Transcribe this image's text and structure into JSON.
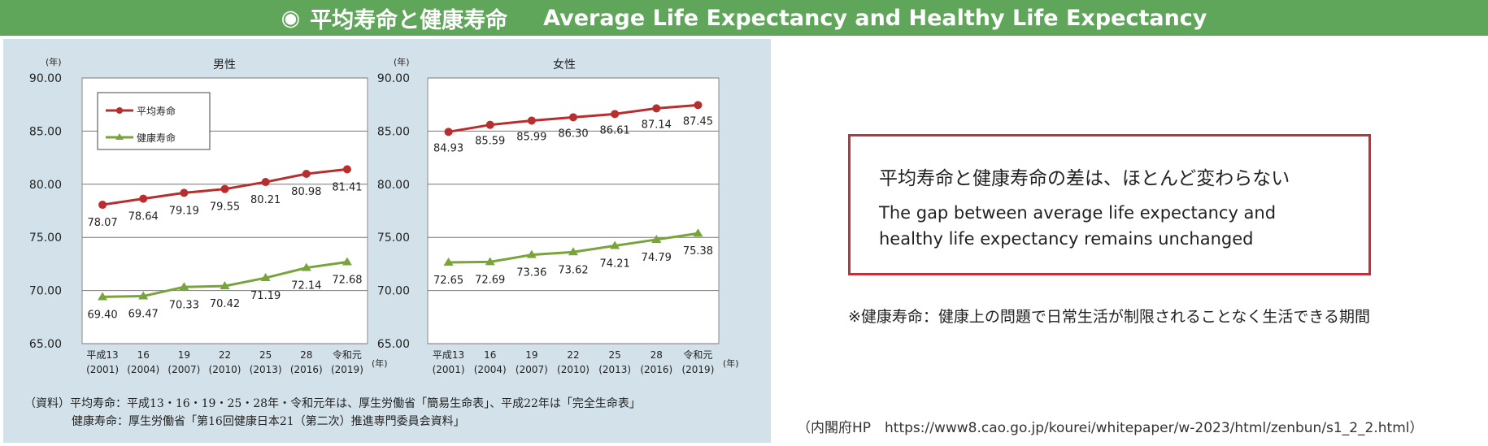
{
  "banner": {
    "mark": "◉",
    "title_jp": "平均寿命と健康寿命",
    "title_en": "Average Life Expectancy and Healthy Life Expectancy"
  },
  "chart_data": [
    {
      "type": "line",
      "title": "男性",
      "ylabel": "(年)",
      "xlabel": "(年)",
      "ylim": [
        65,
        90
      ],
      "yticks": [
        "65.00",
        "70.00",
        "75.00",
        "80.00",
        "85.00",
        "90.00"
      ],
      "categories": [
        "平成13",
        "16",
        "19",
        "22",
        "25",
        "28",
        "令和元"
      ],
      "categories_sub": [
        "(2001)",
        "(2004)",
        "(2007)",
        "(2010)",
        "(2013)",
        "(2016)",
        "(2019)"
      ],
      "legend": [
        "平均寿命",
        "健康寿命"
      ],
      "series": [
        {
          "name": "平均寿命",
          "color": "#b82d2d",
          "values": [
            78.07,
            78.64,
            79.19,
            79.55,
            80.21,
            80.98,
            81.41
          ],
          "labels": [
            "78.07",
            "78.64",
            "79.19",
            "79.55",
            "80.21",
            "80.98",
            "81.41"
          ]
        },
        {
          "name": "健康寿命",
          "color": "#79a43c",
          "values": [
            69.4,
            69.47,
            70.33,
            70.42,
            71.19,
            72.14,
            72.68
          ],
          "labels": [
            "69.40",
            "69.47",
            "70.33",
            "70.42",
            "71.19",
            "72.14",
            "72.68"
          ]
        }
      ]
    },
    {
      "type": "line",
      "title": "女性",
      "ylabel": "(年)",
      "xlabel": "(年)",
      "ylim": [
        65,
        90
      ],
      "yticks": [
        "65.00",
        "70.00",
        "75.00",
        "80.00",
        "85.00",
        "90.00"
      ],
      "categories": [
        "平成13",
        "16",
        "19",
        "22",
        "25",
        "28",
        "令和元"
      ],
      "categories_sub": [
        "(2001)",
        "(2004)",
        "(2007)",
        "(2010)",
        "(2013)",
        "(2016)",
        "(2019)"
      ],
      "series": [
        {
          "name": "平均寿命",
          "color": "#b82d2d",
          "values": [
            84.93,
            85.59,
            85.99,
            86.3,
            86.61,
            87.14,
            87.45
          ],
          "labels": [
            "84.93",
            "85.59",
            "85.99",
            "86.30",
            "86.61",
            "87.14",
            "87.45"
          ]
        },
        {
          "name": "健康寿命",
          "color": "#79a43c",
          "values": [
            72.65,
            72.69,
            73.36,
            73.62,
            74.21,
            74.79,
            75.38
          ],
          "labels": [
            "72.65",
            "72.69",
            "73.36",
            "73.62",
            "74.21",
            "74.79",
            "75.38"
          ]
        }
      ]
    }
  ],
  "source": {
    "line1": "（資料）平均寿命：平成13・16・19・25・28年・令和元年は、厚生労働省「簡易生命表」、平成22年は「完全生命表」",
    "line2": "健康寿命：厚生労働省「第16回健康日本21（第二次）推進専門委員会資料」"
  },
  "callout": {
    "jp": "平均寿命と健康寿命の差は、ほとんど変わらない",
    "en1": "The gap between average life expectancy and",
    "en2": "healthy life expectancy remains unchanged"
  },
  "note": "※健康寿命：健康上の問題で日常生活が制限されることなく生活できる期間",
  "url": "（内閣府HP　https://www8.cao.go.jp/kourei/whitepaper/w-2023/html/zenbun/s1_2_2.html）"
}
